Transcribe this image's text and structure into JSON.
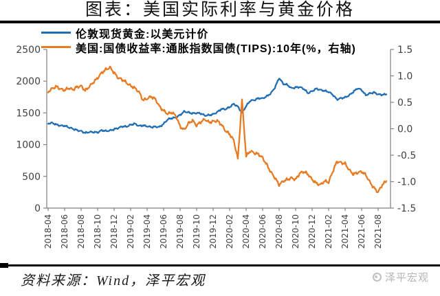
{
  "chart_data": {
    "type": "line",
    "title": "图表：美国实际利率与黄金价格",
    "x_start": "2018-04",
    "x_step_months": 0.5,
    "x_total_months": 41.5,
    "x_tick_labels": [
      "2018-04",
      "2018-06",
      "2018-08",
      "2018-10",
      "2018-12",
      "2019-02",
      "2019-04",
      "2019-06",
      "2019-08",
      "2019-10",
      "2019-12",
      "2020-02",
      "2020-04",
      "2020-06",
      "2020-08",
      "2020-10",
      "2020-12",
      "2021-02",
      "2021-04",
      "2021-06",
      "2021-08"
    ],
    "grid": false,
    "legend_position": "top-left",
    "left_axis": {
      "range": [
        0,
        2500
      ],
      "tick_values": [
        0,
        500,
        1000,
        1500,
        2000,
        2500
      ],
      "tick_labels": [
        "0",
        "500",
        "1000",
        "1500",
        "2000",
        "2500"
      ]
    },
    "right_axis": {
      "range": [
        -1.5,
        1.5
      ],
      "tick_values": [
        -1.5,
        -1.0,
        -0.5,
        0.0,
        0.5,
        1.0,
        1.5
      ],
      "tick_labels": [
        "-1.5",
        "-1.0",
        "-0.5",
        "0.0",
        "0.5",
        "1.0",
        "1.5"
      ]
    },
    "series": [
      {
        "name": "伦敦现货黄金:以美元计价",
        "axis": "left",
        "color": "#1F6EB4",
        "values": [
          1335,
          1342,
          1315,
          1298,
          1298,
          1272,
          1250,
          1228,
          1212,
          1185,
          1200,
          1198,
          1192,
          1226,
          1214,
          1222,
          1243,
          1262,
          1288,
          1283,
          1312,
          1330,
          1295,
          1302,
          1290,
          1276,
          1282,
          1278,
          1328,
          1398,
          1418,
          1426,
          1468,
          1522,
          1508,
          1492,
          1498,
          1492,
          1458,
          1464,
          1478,
          1512,
          1562,
          1558,
          1592,
          1642,
          1598,
          1502,
          1608,
          1692,
          1702,
          1732,
          1728,
          1762,
          1808,
          1902,
          2052,
          1958,
          1942,
          1888,
          1902,
          1908,
          1878,
          1812,
          1842,
          1882,
          1862,
          1848,
          1832,
          1788,
          1712,
          1732,
          1744,
          1778,
          1832,
          1888,
          1862,
          1778,
          1808,
          1822,
          1792,
          1786,
          1792
        ]
      },
      {
        "name": "美国:国债收益率:通胀指数国债(TIPS):10年(%，右轴)",
        "axis": "right",
        "color": "#E87A22",
        "values": [
          0.7,
          0.76,
          0.8,
          0.75,
          0.73,
          0.77,
          0.74,
          0.79,
          0.81,
          0.72,
          0.8,
          0.88,
          0.96,
          1.06,
          1.12,
          1.16,
          1.06,
          0.96,
          0.93,
          0.87,
          0.81,
          0.77,
          0.7,
          0.54,
          0.57,
          0.61,
          0.56,
          0.42,
          0.34,
          0.28,
          0.31,
          0.24,
          0.04,
          -0.02,
          0.1,
          0.16,
          0.06,
          0.13,
          0.18,
          0.12,
          0.14,
          0.15,
          0.08,
          -0.04,
          -0.1,
          -0.22,
          -0.57,
          0.55,
          -0.52,
          -0.42,
          -0.46,
          -0.48,
          -0.55,
          -0.68,
          -0.82,
          -0.93,
          -1.06,
          -0.99,
          -0.96,
          -0.93,
          -0.96,
          -0.84,
          -0.81,
          -0.86,
          -0.96,
          -1.03,
          -1.06,
          -0.99,
          -1.01,
          -0.81,
          -0.62,
          -0.64,
          -0.66,
          -0.78,
          -0.86,
          -0.83,
          -0.81,
          -0.87,
          -1.01,
          -1.12,
          -1.2,
          -1.06,
          -0.99
        ]
      }
    ]
  },
  "footer": {
    "source": "资料来源：Wind，泽平宏观",
    "logo_text": "泽平宏观"
  }
}
